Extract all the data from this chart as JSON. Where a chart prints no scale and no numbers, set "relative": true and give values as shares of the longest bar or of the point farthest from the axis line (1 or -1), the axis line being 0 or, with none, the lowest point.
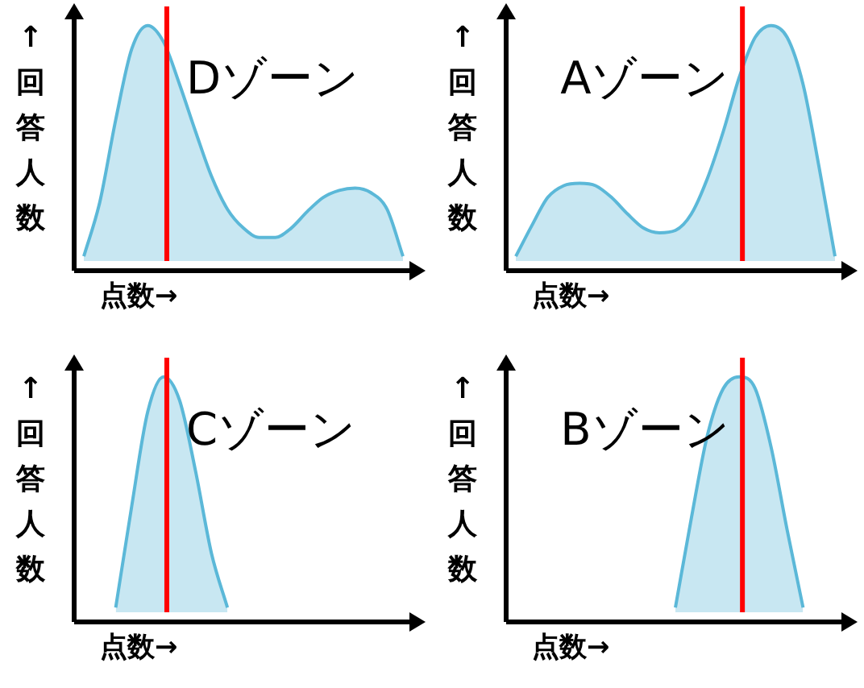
{
  "chart_data": [
    {
      "type": "area",
      "title": "Dゾーン",
      "xlabel": "点数→",
      "ylabel": "↑回答人数",
      "relative": true,
      "categories": [
        null,
        null,
        null,
        null,
        null,
        null,
        null,
        null,
        null,
        null,
        null,
        null,
        null,
        null,
        null,
        null,
        null,
        null,
        null,
        null,
        null
      ],
      "series": [
        {
          "color": "#5bb8d8",
          "values": [
            0.02,
            0.25,
            0.6,
            0.9,
            1.0,
            0.93,
            0.75,
            0.55,
            0.36,
            0.22,
            0.14,
            0.1,
            0.1,
            0.14,
            0.21,
            0.27,
            0.3,
            0.31,
            0.29,
            0.22,
            0.02
          ]
        }
      ]
    },
    {
      "type": "area",
      "title": "Aゾーン",
      "xlabel": "点数→",
      "ylabel": "↑回答人数",
      "relative": true,
      "categories": [
        null,
        null,
        null,
        null,
        null,
        null,
        null,
        null,
        null,
        null,
        null,
        null,
        null,
        null,
        null,
        null,
        null,
        null,
        null,
        null,
        null
      ],
      "series": [
        {
          "color": "#5bb8d8",
          "values": [
            0.02,
            0.15,
            0.27,
            0.32,
            0.33,
            0.32,
            0.27,
            0.2,
            0.14,
            0.12,
            0.13,
            0.2,
            0.35,
            0.55,
            0.78,
            0.95,
            1.0,
            0.95,
            0.75,
            0.4,
            0.02
          ]
        }
      ]
    },
    {
      "type": "area",
      "title": "Cゾーン",
      "xlabel": "点数→",
      "ylabel": "↑回答人数",
      "relative": true,
      "categories": [
        null,
        null,
        null,
        null,
        null,
        null,
        null,
        null,
        null,
        null,
        null,
        null,
        null,
        null,
        null,
        null,
        null,
        null,
        null,
        null,
        null
      ],
      "series": [
        {
          "color": "#5bb8d8",
          "values": [
            null,
            null,
            0.02,
            0.45,
            0.85,
            1.0,
            0.9,
            0.6,
            0.25,
            0.02,
            null,
            null,
            null,
            null,
            null,
            null,
            null,
            null,
            null,
            null,
            null
          ]
        }
      ]
    },
    {
      "type": "area",
      "title": "Bゾーン",
      "xlabel": "点数→",
      "ylabel": "↑回答人数",
      "relative": true,
      "categories": [
        null,
        null,
        null,
        null,
        null,
        null,
        null,
        null,
        null,
        null,
        null,
        null,
        null,
        null,
        null,
        null,
        null,
        null,
        null,
        null,
        null
      ],
      "series": [
        {
          "color": "#5bb8d8",
          "values": [
            null,
            null,
            null,
            null,
            null,
            null,
            null,
            null,
            null,
            null,
            0.02,
            0.4,
            0.75,
            0.95,
            1.0,
            0.95,
            0.7,
            0.35,
            0.02,
            null,
            null
          ]
        }
      ]
    }
  ]
}
